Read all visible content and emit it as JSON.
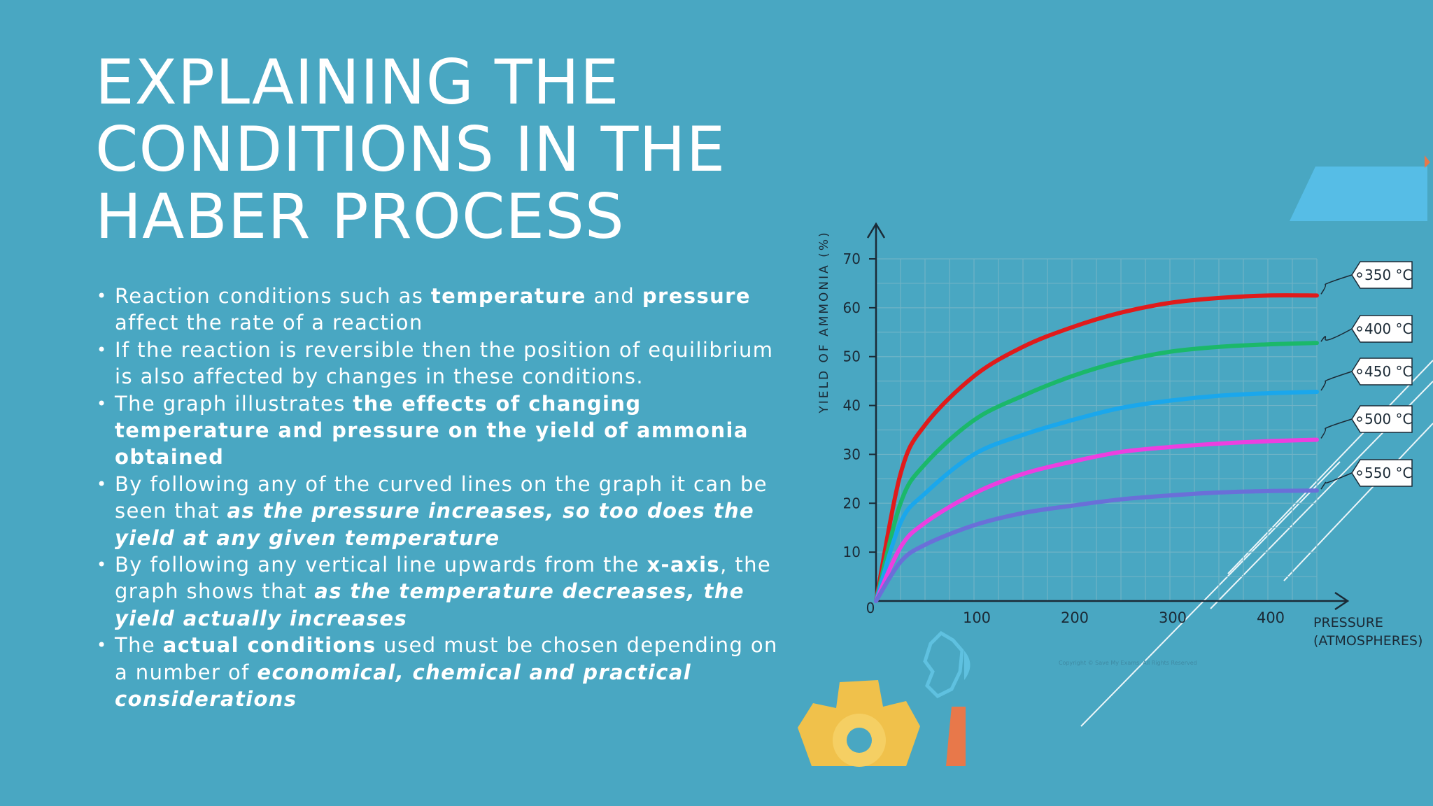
{
  "title": [
    "EXPLAINING THE",
    "CONDITIONS IN THE",
    "HABER PROCESS"
  ],
  "bullets": [
    [
      {
        "t": "Reaction conditions such as ",
        "s": "n"
      },
      {
        "t": "temperature",
        "s": "b"
      },
      {
        "t": " and ",
        "s": "n"
      },
      {
        "t": "pressure",
        "s": "b"
      },
      {
        "t": " affect the rate of a reaction",
        "s": "n"
      }
    ],
    [
      {
        "t": "If the reaction is reversible then the position of equilibrium is also affected by changes in these conditions.",
        "s": "n"
      }
    ],
    [
      {
        "t": "The graph illustrates ",
        "s": "n"
      },
      {
        "t": "the effects of changing temperature and pressure on the yield of ammonia obtained",
        "s": "b"
      }
    ],
    [
      {
        "t": "By following any of the curved lines on the graph it can be seen that ",
        "s": "n"
      },
      {
        "t": "as the pressure increases, so too does the yield at any given temperature",
        "s": "i"
      }
    ],
    [
      {
        "t": "By following any vertical line upwards from the ",
        "s": "n"
      },
      {
        "t": "x-axis",
        "s": "b"
      },
      {
        "t": ", the graph shows that ",
        "s": "n"
      },
      {
        "t": "as the temperature decreases, the yield actually increases",
        "s": "i"
      }
    ],
    [
      {
        "t": "The ",
        "s": "n"
      },
      {
        "t": "actual conditions",
        "s": "b"
      },
      {
        "t": " used must be chosen depending on a number of ",
        "s": "n"
      },
      {
        "t": "economical, chemical and practical considerations",
        "s": "i"
      }
    ]
  ],
  "chart_data": {
    "type": "line",
    "title": "",
    "xlabel": "PRESSURE (ATMOSPHERES)",
    "xlabel_lines": [
      "PRESSURE",
      "(ATMOSPHERES)"
    ],
    "ylabel": "YIELD OF AMMONIA (%)",
    "xlim": [
      0,
      450
    ],
    "ylim": [
      0,
      70
    ],
    "x_ticks": [
      100,
      200,
      300,
      400
    ],
    "y_ticks": [
      10,
      20,
      30,
      40,
      50,
      60,
      70
    ],
    "origin_label": "0",
    "grid": true,
    "legend": "tags at line ends (right)",
    "copyright": "Copyright © Save My Exams. All Rights Reserved",
    "series": [
      {
        "name": "350 °C",
        "color": "#e01b1b",
        "x": [
          0,
          25,
          50,
          100,
          150,
          200,
          250,
          300,
          350,
          400,
          450
        ],
        "y": [
          0,
          26,
          36,
          46,
          52,
          56,
          59,
          61,
          62,
          62.5,
          62.5
        ]
      },
      {
        "name": "400 °C",
        "color": "#1bb86a",
        "x": [
          0,
          25,
          50,
          100,
          150,
          200,
          250,
          300,
          350,
          400,
          450
        ],
        "y": [
          0,
          20,
          28,
          37,
          42,
          46,
          49,
          51,
          52,
          52.5,
          52.8
        ]
      },
      {
        "name": "450 °C",
        "color": "#1aa7ec",
        "x": [
          0,
          25,
          50,
          100,
          150,
          200,
          250,
          300,
          350,
          400,
          450
        ],
        "y": [
          0,
          16,
          22,
          30,
          34,
          37,
          39.5,
          41,
          42,
          42.5,
          42.8
        ]
      },
      {
        "name": "500 °C",
        "color": "#ec3fe0",
        "x": [
          0,
          25,
          50,
          100,
          150,
          200,
          250,
          300,
          350,
          400,
          450
        ],
        "y": [
          0,
          11,
          16,
          22,
          26,
          28.5,
          30.5,
          31.5,
          32.2,
          32.7,
          33
        ]
      },
      {
        "name": "550 °C",
        "color": "#6a6fd8",
        "x": [
          0,
          25,
          50,
          100,
          150,
          200,
          250,
          300,
          350,
          400,
          450
        ],
        "y": [
          0,
          8,
          11.5,
          15.5,
          18,
          19.5,
          20.8,
          21.6,
          22.2,
          22.5,
          22.6
        ]
      }
    ]
  }
}
